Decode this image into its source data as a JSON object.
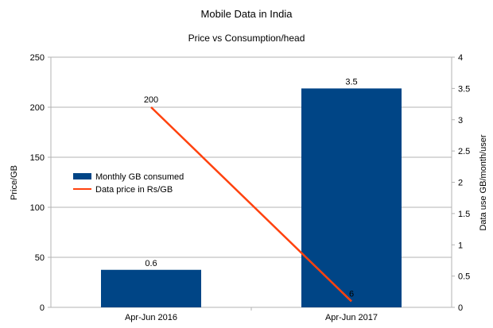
{
  "chart_data": {
    "type": "bar",
    "title": "Mobile Data in India",
    "subtitle": "Price vs Consumption/head",
    "categories": [
      "Apr-Jun 2016",
      "Apr-Jun 2017"
    ],
    "ylabel_left": "Price/GB",
    "ylabel_right": "Data use GB/month/user",
    "ylim_left": [
      0,
      250
    ],
    "ylim_right": [
      0,
      4
    ],
    "yticks_left": [
      "0",
      "50",
      "100",
      "150",
      "200",
      "250"
    ],
    "yticks_right": [
      "0",
      "0.5",
      "1",
      "1.5",
      "2",
      "2.5",
      "3",
      "3.5",
      "4"
    ],
    "grid": true,
    "legend_position": "middle-left",
    "series": [
      {
        "name": "Monthly GB consumed",
        "kind": "bar",
        "axis": "right",
        "color": "#004586",
        "values": [
          0.6,
          3.5
        ],
        "labels": [
          "0.6",
          "3.5"
        ]
      },
      {
        "name": "Data price in Rs/GB",
        "kind": "line",
        "axis": "left",
        "color": "#ff420e",
        "values": [
          200,
          6
        ],
        "labels": [
          "200",
          "6"
        ]
      }
    ]
  }
}
